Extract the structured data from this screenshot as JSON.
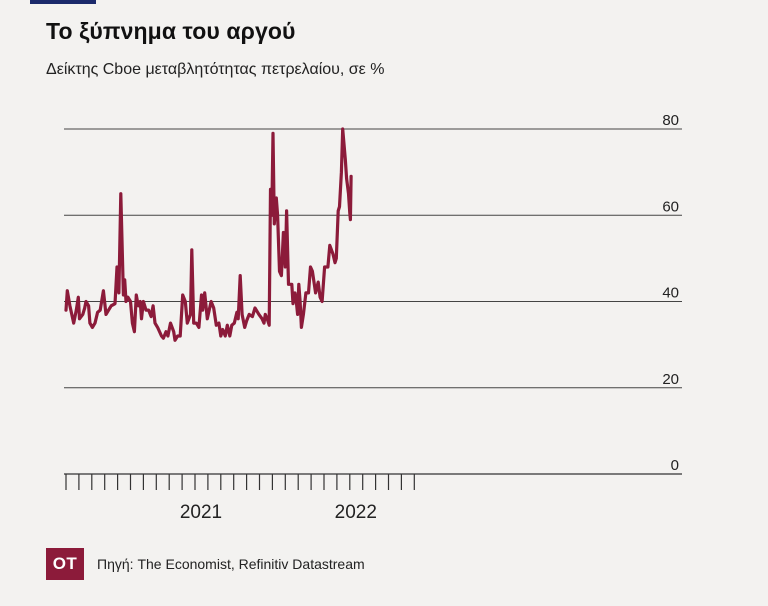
{
  "title": "Το ξύπνημα του αργού",
  "subtitle": "Δείκτης Cboe μεταβλητότητας πετρελαίου, σε %",
  "source": "Πηγή: The Economist, Refinitiv Datastream",
  "logo": "OT",
  "colors": {
    "line": "#8c1b3a",
    "grid": "#444444",
    "axis": "#333333",
    "logo_bg": "#8c1b3a"
  },
  "chart_data": {
    "type": "line",
    "title": "Το ξύπνημα του αργού",
    "subtitle": "Δείκτης Cboe μεταβλητότητας πετρελαίου, σε %",
    "xlabel": "",
    "ylabel": "",
    "ylim": [
      0,
      80
    ],
    "yticks": [
      0,
      20,
      40,
      60,
      80
    ],
    "ytick_labels": [
      "0",
      "20",
      "40",
      "60",
      "80"
    ],
    "xlim": [
      "2020-03",
      "2022-06"
    ],
    "xtick_months": 27,
    "xlabels": [
      {
        "label": "2021",
        "month_index": 10
      },
      {
        "label": "2022",
        "month_index": 22
      }
    ],
    "grid": true,
    "series": [
      {
        "values": [
          [
            0,
            38
          ],
          [
            0.1,
            42.5
          ],
          [
            0.3,
            39
          ],
          [
            0.6,
            35
          ],
          [
            0.8,
            38
          ],
          [
            0.95,
            41
          ],
          [
            1.05,
            36
          ],
          [
            1.3,
            37
          ],
          [
            1.45,
            38.5
          ],
          [
            1.55,
            40
          ],
          [
            1.75,
            39
          ],
          [
            1.85,
            35
          ],
          [
            2.05,
            34
          ],
          [
            2.25,
            35
          ],
          [
            2.45,
            37.5
          ],
          [
            2.65,
            38
          ],
          [
            2.9,
            42.5
          ],
          [
            3.1,
            37
          ],
          [
            3.3,
            38
          ],
          [
            3.5,
            39
          ],
          [
            3.8,
            39.5
          ],
          [
            3.95,
            48
          ],
          [
            4.1,
            42
          ],
          [
            4.25,
            65
          ],
          [
            4.45,
            41.5
          ],
          [
            4.55,
            45
          ],
          [
            4.65,
            40
          ],
          [
            4.8,
            41
          ],
          [
            5.0,
            40
          ],
          [
            5.15,
            35
          ],
          [
            5.3,
            33
          ],
          [
            5.45,
            41.5
          ],
          [
            5.6,
            39
          ],
          [
            5.75,
            40
          ],
          [
            5.85,
            36
          ],
          [
            6.0,
            40
          ],
          [
            6.2,
            38
          ],
          [
            6.4,
            38
          ],
          [
            6.6,
            36.5
          ],
          [
            6.75,
            39
          ],
          [
            6.9,
            35
          ],
          [
            7.1,
            34
          ],
          [
            7.4,
            32
          ],
          [
            7.55,
            31.5
          ],
          [
            7.75,
            33
          ],
          [
            7.9,
            32
          ],
          [
            8.1,
            35
          ],
          [
            8.35,
            33
          ],
          [
            8.45,
            31
          ],
          [
            8.65,
            32
          ],
          [
            8.85,
            32
          ],
          [
            9.05,
            41.5
          ],
          [
            9.25,
            40
          ],
          [
            9.4,
            35
          ],
          [
            9.65,
            37
          ],
          [
            9.75,
            52
          ],
          [
            9.9,
            35
          ],
          [
            10.1,
            35
          ],
          [
            10.3,
            34
          ],
          [
            10.5,
            41.5
          ],
          [
            10.6,
            38
          ],
          [
            10.75,
            42
          ],
          [
            10.95,
            36
          ],
          [
            11.25,
            40
          ],
          [
            11.45,
            38.5
          ],
          [
            11.65,
            34.5
          ],
          [
            11.85,
            35
          ],
          [
            12.0,
            32
          ],
          [
            12.15,
            33.5
          ],
          [
            12.35,
            32
          ],
          [
            12.5,
            34.5
          ],
          [
            12.7,
            32
          ],
          [
            12.85,
            34.5
          ],
          [
            13.05,
            35
          ],
          [
            13.25,
            37.5
          ],
          [
            13.35,
            36
          ],
          [
            13.5,
            46
          ],
          [
            13.65,
            37
          ],
          [
            13.85,
            34
          ],
          [
            14.0,
            35.5
          ],
          [
            14.2,
            37
          ],
          [
            14.45,
            36.5
          ],
          [
            14.65,
            38.5
          ],
          [
            14.95,
            37
          ],
          [
            15.2,
            36
          ],
          [
            15.35,
            35
          ],
          [
            15.45,
            37
          ],
          [
            15.6,
            36
          ],
          [
            15.75,
            34.5
          ],
          [
            15.85,
            66
          ],
          [
            15.95,
            60
          ],
          [
            16.05,
            79
          ],
          [
            16.15,
            58
          ],
          [
            16.3,
            64
          ],
          [
            16.4,
            60
          ],
          [
            16.55,
            47
          ],
          [
            16.7,
            46
          ],
          [
            16.85,
            56
          ],
          [
            17.0,
            48
          ],
          [
            17.1,
            61
          ],
          [
            17.25,
            44
          ],
          [
            17.4,
            44
          ],
          [
            17.5,
            44
          ],
          [
            17.6,
            39.5
          ],
          [
            17.75,
            42
          ],
          [
            17.85,
            40
          ],
          [
            17.95,
            37
          ],
          [
            18.05,
            44
          ],
          [
            18.15,
            40
          ],
          [
            18.25,
            34
          ],
          [
            18.4,
            37
          ],
          [
            18.6,
            42
          ],
          [
            18.8,
            42
          ],
          [
            18.95,
            48
          ],
          [
            19.1,
            47
          ],
          [
            19.35,
            42
          ],
          [
            19.55,
            44.5
          ],
          [
            19.7,
            41
          ],
          [
            19.85,
            40
          ],
          [
            20.05,
            48
          ],
          [
            20.3,
            48
          ],
          [
            20.45,
            53
          ],
          [
            20.7,
            51
          ],
          [
            20.85,
            49
          ],
          [
            20.95,
            50
          ],
          [
            21.1,
            61
          ],
          [
            21.2,
            62
          ],
          [
            21.35,
            70
          ],
          [
            21.45,
            80
          ],
          [
            21.65,
            73
          ],
          [
            21.75,
            68.5
          ],
          [
            21.9,
            65
          ],
          [
            22.0,
            60.5
          ],
          [
            22.05,
            59
          ],
          [
            22.1,
            69
          ]
        ]
      }
    ]
  }
}
